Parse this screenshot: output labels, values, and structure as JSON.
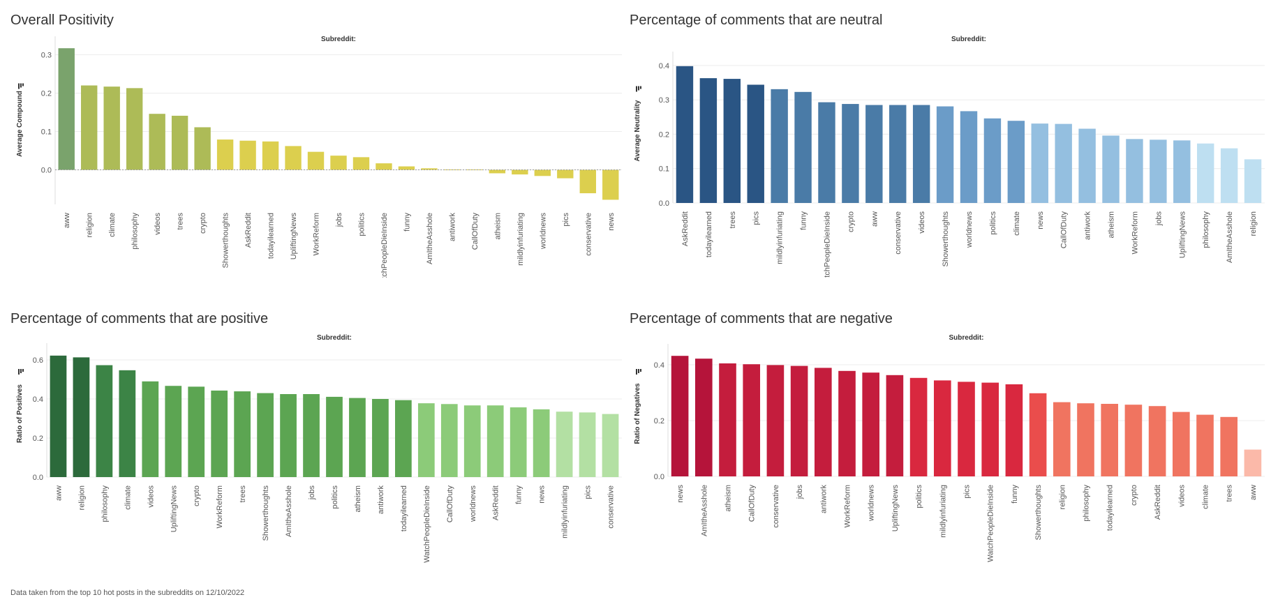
{
  "footer_note": "Data taken from the top 10 hot posts in the subreddits on 12/10/2022",
  "chart_data": [
    {
      "id": "overall",
      "type": "bar",
      "title": "Overall Positivity",
      "header": "Subreddit:",
      "xlabel": "",
      "ylabel": "Average Compound",
      "ylim": [
        -0.09,
        0.33
      ],
      "ticks": [
        0.0,
        0.1,
        0.2,
        0.3
      ],
      "tick_labels": [
        "0.0",
        "0.1",
        "0.2",
        "0.3"
      ],
      "zero_line": true,
      "categories": [
        "aww",
        "religion",
        "climate",
        "philosophy",
        "videos",
        "trees",
        "crypto",
        "Showerthoughts",
        "AskReddit",
        "todayilearned",
        "UpliftingNews",
        "WorkReform",
        "jobs",
        "politics",
        "WatchPeopleDieInside",
        "funny",
        "AmItheAsshole",
        "antiwork",
        "CallOfDuty",
        "atheism",
        "mildlyinfuriating",
        "worldnews",
        "pics",
        "conservative",
        "news"
      ],
      "values": [
        0.317,
        0.22,
        0.217,
        0.213,
        0.146,
        0.141,
        0.111,
        0.079,
        0.076,
        0.074,
        0.062,
        0.047,
        0.037,
        0.033,
        0.017,
        0.009,
        0.004,
        0.001,
        0.001,
        -0.009,
        -0.012,
        -0.016,
        -0.022,
        -0.061,
        -0.078
      ],
      "colors": [
        "#7aa36c",
        "#adbb57",
        "#adbb57",
        "#adbb57",
        "#adbb57",
        "#adbb57",
        "#adbb57",
        "#dccf4e",
        "#dccf4e",
        "#dccf4e",
        "#dccf4e",
        "#dccf4e",
        "#dccf4e",
        "#dccf4e",
        "#dccf4e",
        "#dccf4e",
        "#dccf4e",
        "#dccf4e",
        "#dccf4e",
        "#dccf4e",
        "#dccf4e",
        "#dccf4e",
        "#dccf4e",
        "#dccf4e",
        "#dccf4e"
      ]
    },
    {
      "id": "neutral",
      "type": "bar",
      "title": "Percentage of comments that are neutral",
      "header": "Subreddit:",
      "xlabel": "",
      "ylabel": "Average Neutrality",
      "ylim": [
        0,
        0.42
      ],
      "ticks": [
        0.0,
        0.1,
        0.2,
        0.3,
        0.4
      ],
      "tick_labels": [
        "0.0",
        "0.1",
        "0.2",
        "0.3",
        "0.4"
      ],
      "zero_line": false,
      "categories": [
        "AskReddit",
        "todayilearned",
        "trees",
        "pics",
        "mildlyinfuriating",
        "funny",
        "WatchPeopleDieInside",
        "crypto",
        "aww",
        "conservative",
        "videos",
        "Showerthoughts",
        "worldnews",
        "politics",
        "climate",
        "news",
        "CallOfDuty",
        "antiwork",
        "atheism",
        "WorkReform",
        "jobs",
        "UpliftingNews",
        "philosophy",
        "AmItheAsshole",
        "religion"
      ],
      "values": [
        0.398,
        0.363,
        0.361,
        0.344,
        0.331,
        0.323,
        0.293,
        0.288,
        0.285,
        0.285,
        0.285,
        0.281,
        0.267,
        0.246,
        0.239,
        0.231,
        0.23,
        0.216,
        0.196,
        0.186,
        0.184,
        0.182,
        0.173,
        0.159,
        0.127
      ],
      "colors": [
        "#2a5584",
        "#2a5584",
        "#2a5584",
        "#2a5584",
        "#4a7ba7",
        "#4a7ba7",
        "#4a7ba7",
        "#4a7ba7",
        "#4a7ba7",
        "#4a7ba7",
        "#4a7ba7",
        "#6b9cc8",
        "#6b9cc8",
        "#6b9cc8",
        "#6b9cc8",
        "#94bfe0",
        "#94bfe0",
        "#94bfe0",
        "#94bfe0",
        "#94bfe0",
        "#94bfe0",
        "#94bfe0",
        "#bedff1",
        "#bedff1",
        "#bedff1"
      ]
    },
    {
      "id": "positive",
      "type": "bar",
      "title": "Percentage of comments that are positive",
      "header": "Subreddit:",
      "xlabel": "",
      "ylabel": "Ratio of Positives",
      "ylim": [
        0,
        0.65
      ],
      "ticks": [
        0.0,
        0.2,
        0.4,
        0.6
      ],
      "tick_labels": [
        "0.0",
        "0.2",
        "0.4",
        "0.6"
      ],
      "zero_line": false,
      "categories": [
        "aww",
        "religion",
        "philosophy",
        "climate",
        "videos",
        "UpliftingNews",
        "crypto",
        "WorkReform",
        "trees",
        "Showerthoughts",
        "AmItheAsshole",
        "jobs",
        "politics",
        "atheism",
        "antiwork",
        "todayilearned",
        "WatchPeopleDieInside",
        "CallOfDuty",
        "worldnews",
        "AskReddit",
        "funny",
        "news",
        "mildlyinfuriating",
        "pics",
        "conservative"
      ],
      "values": [
        0.622,
        0.613,
        0.573,
        0.547,
        0.49,
        0.467,
        0.463,
        0.443,
        0.439,
        0.43,
        0.425,
        0.425,
        0.411,
        0.405,
        0.4,
        0.394,
        0.378,
        0.374,
        0.367,
        0.367,
        0.357,
        0.347,
        0.335,
        0.331,
        0.323
      ],
      "colors": [
        "#2c6a3b",
        "#2c6a3b",
        "#3c8446",
        "#3c8446",
        "#5ca552",
        "#5ca552",
        "#5ca552",
        "#5ca552",
        "#5ca552",
        "#5ca552",
        "#5ca552",
        "#5ca552",
        "#5ca552",
        "#5ca552",
        "#5ca552",
        "#5ca552",
        "#8ccb79",
        "#8ccb79",
        "#8ccb79",
        "#8ccb79",
        "#8ccb79",
        "#8ccb79",
        "#b3e0a3",
        "#b3e0a3",
        "#b3e0a3"
      ]
    },
    {
      "id": "negative",
      "type": "bar",
      "title": "Percentage of comments that are negative",
      "header": "Subreddit:",
      "xlabel": "",
      "ylabel": "Ratio of Negatives",
      "ylim": [
        0,
        0.45
      ],
      "ticks": [
        0.0,
        0.2,
        0.4
      ],
      "tick_labels": [
        "0.0",
        "0.2",
        "0.4"
      ],
      "zero_line": false,
      "categories": [
        "news",
        "AmItheAsshole",
        "atheism",
        "CallOfDuty",
        "conservative",
        "jobs",
        "antiwork",
        "WorkReform",
        "worldnews",
        "UpliftingNews",
        "politics",
        "mildlyinfuriating",
        "pics",
        "WatchPeopleDieInside",
        "funny",
        "Showerthoughts",
        "religion",
        "philosophy",
        "todayilearned",
        "crypto",
        "AskReddit",
        "videos",
        "climate",
        "trees",
        "aww"
      ],
      "values": [
        0.432,
        0.422,
        0.405,
        0.402,
        0.399,
        0.396,
        0.389,
        0.378,
        0.372,
        0.363,
        0.353,
        0.344,
        0.339,
        0.336,
        0.33,
        0.298,
        0.266,
        0.262,
        0.26,
        0.257,
        0.252,
        0.231,
        0.221,
        0.213,
        0.096
      ],
      "colors": [
        "#b5143a",
        "#b5143a",
        "#c41d3d",
        "#c41d3d",
        "#c41d3d",
        "#c41d3d",
        "#c41d3d",
        "#c41d3d",
        "#c41d3d",
        "#c41d3d",
        "#d9283f",
        "#d9283f",
        "#d9283f",
        "#d9283f",
        "#d9283f",
        "#ea4d4c",
        "#f07460",
        "#f07460",
        "#f07460",
        "#f07460",
        "#f07460",
        "#f07460",
        "#f07460",
        "#f07460",
        "#fbb9a9"
      ]
    }
  ]
}
